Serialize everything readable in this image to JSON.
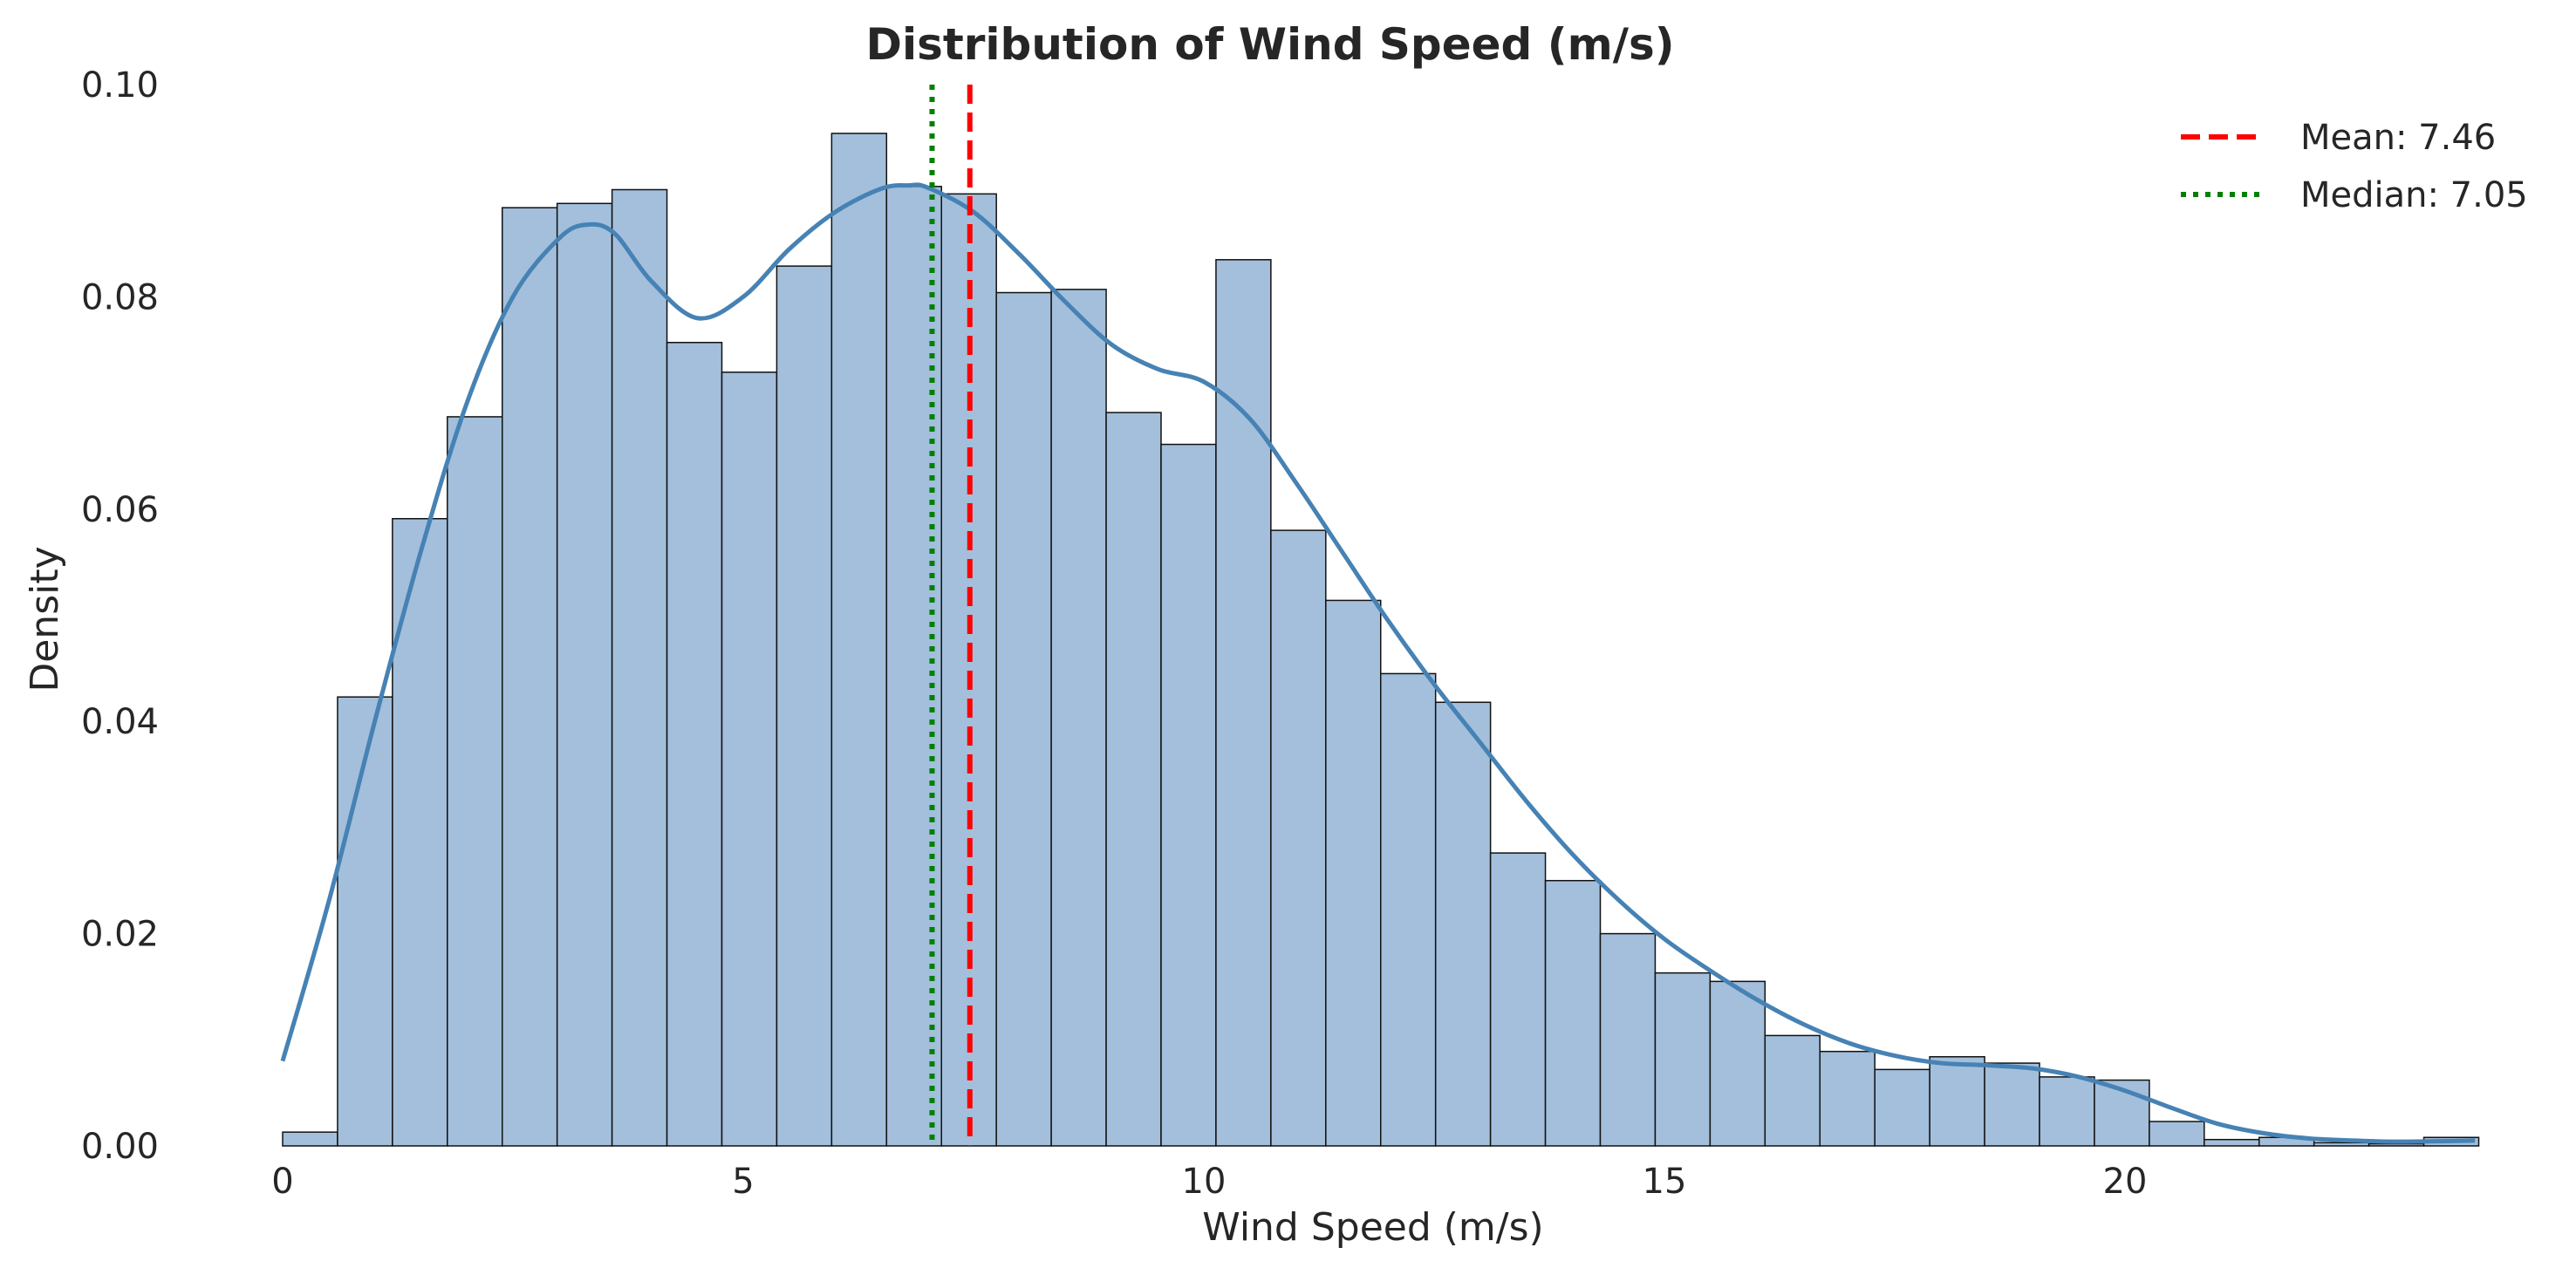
{
  "chart_data": {
    "type": "bar",
    "subtype": "histogram-with-kde",
    "title": "Distribution of Wind Speed (m/s)",
    "xlabel": "Wind Speed (m/s)",
    "ylabel": "Density",
    "xlim": [
      -0.2,
      23.8
    ],
    "ylim": [
      0,
      0.1
    ],
    "xticks": [
      0,
      5,
      10,
      15,
      20
    ],
    "xtick_labels": [
      "0",
      "5",
      "10",
      "15",
      "20"
    ],
    "yticks": [
      0,
      0.02,
      0.04,
      0.06,
      0.08,
      0.1
    ],
    "ytick_labels": [
      "0.00",
      "0.02",
      "0.04",
      "0.06",
      "0.08",
      "0.10"
    ],
    "grid": false,
    "legend_position": "top-right",
    "colors": {
      "bars": "#a3bfdb",
      "bar_edge": "#111111",
      "kde": "#4682b4",
      "mean": "#ff0000",
      "median": "#008000"
    },
    "bins": {
      "start": 0.0,
      "width": 0.596,
      "values": [
        0.0013,
        0.0423,
        0.0591,
        0.0687,
        0.0884,
        0.0888,
        0.0901,
        0.0757,
        0.0729,
        0.0829,
        0.0954,
        0.0904,
        0.0897,
        0.0804,
        0.0807,
        0.0691,
        0.0661,
        0.0835,
        0.058,
        0.0514,
        0.0445,
        0.0418,
        0.0276,
        0.025,
        0.02,
        0.0163,
        0.0155,
        0.0104,
        0.0089,
        0.0072,
        0.0084,
        0.0078,
        0.0065,
        0.0062,
        0.0023,
        0.0006,
        0.0008,
        0.0003,
        0.0002,
        0.0008
      ]
    },
    "kde": {
      "x": [
        0.0,
        0.5,
        1.0,
        1.5,
        2.0,
        2.5,
        3.0,
        3.3,
        3.6,
        4.0,
        4.5,
        5.0,
        5.5,
        6.0,
        6.5,
        6.8,
        7.0,
        7.5,
        8.0,
        8.5,
        9.0,
        9.5,
        10.0,
        10.5,
        11.0,
        11.5,
        12.0,
        12.5,
        13.0,
        13.5,
        14.0,
        14.5,
        15.0,
        15.5,
        16.0,
        16.5,
        17.0,
        17.5,
        18.0,
        18.5,
        19.0,
        19.5,
        20.0,
        20.5,
        21.0,
        21.5,
        22.0,
        22.5,
        23.0,
        23.8
      ],
      "y": [
        0.008,
        0.023,
        0.04,
        0.056,
        0.07,
        0.08,
        0.0855,
        0.0868,
        0.086,
        0.0815,
        0.078,
        0.08,
        0.0845,
        0.088,
        0.0902,
        0.0905,
        0.0903,
        0.088,
        0.084,
        0.0795,
        0.0755,
        0.0732,
        0.072,
        0.0685,
        0.0625,
        0.056,
        0.0495,
        0.0435,
        0.038,
        0.0325,
        0.0275,
        0.0232,
        0.0195,
        0.0165,
        0.0138,
        0.0115,
        0.0097,
        0.0085,
        0.0078,
        0.0076,
        0.0073,
        0.0065,
        0.0052,
        0.0036,
        0.0021,
        0.0012,
        0.0007,
        0.0005,
        0.0004,
        0.0005
      ]
    },
    "mean": 7.46,
    "median": 7.05,
    "legend": [
      {
        "label": "Mean: 7.46",
        "style": "dashed",
        "color": "#ff0000"
      },
      {
        "label": "Median: 7.05",
        "style": "dotted",
        "color": "#008000"
      }
    ]
  }
}
